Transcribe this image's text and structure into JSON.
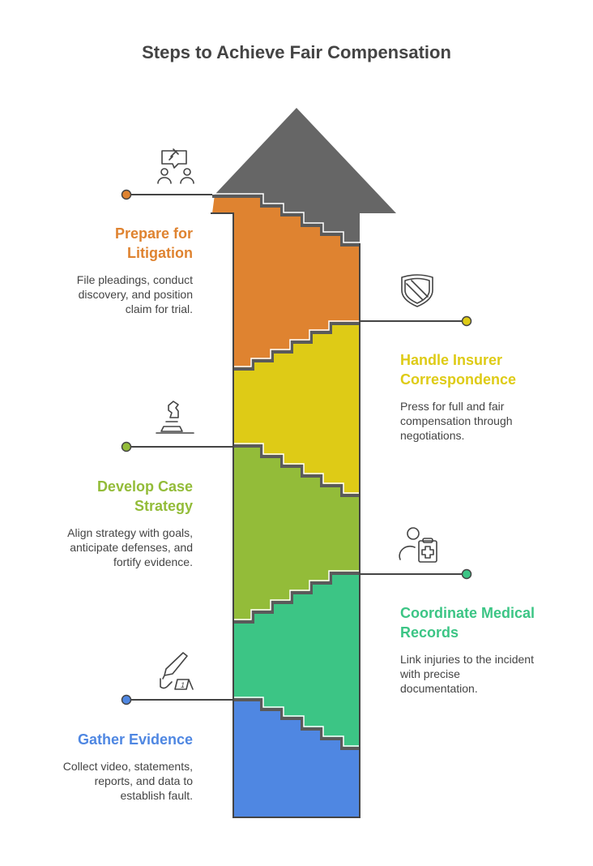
{
  "title": "Steps to Achieve Fair Compensation",
  "colors": {
    "arrow_head": "#666666",
    "orange": "#DF8330",
    "yellow": "#DECB16",
    "green": "#93BC39",
    "teal": "#3CC585",
    "blue": "#4F87E2",
    "text": "#444444"
  },
  "steps": [
    {
      "title_lines": [
        "Prepare for",
        "Litigation"
      ],
      "desc_lines": [
        "File pleadings, conduct",
        "discovery, and position",
        "claim for trial."
      ],
      "icon": "gavel-speech-people-icon",
      "color": "#DF8330"
    },
    {
      "title_lines": [
        "Handle Insurer",
        "Correspondence"
      ],
      "desc_lines": [
        "Press for full and fair",
        "compensation through",
        "negotiations."
      ],
      "icon": "shield-icon",
      "color": "#DECB16"
    },
    {
      "title_lines": [
        "Develop Case",
        "Strategy"
      ],
      "desc_lines": [
        "Align strategy with goals,",
        "anticipate defenses, and",
        "fortify evidence."
      ],
      "icon": "chess-knight-icon",
      "color": "#93BC39"
    },
    {
      "title_lines": [
        "Coordinate Medical",
        "Records"
      ],
      "desc_lines": [
        "Link injuries to the incident",
        "with precise",
        "documentation."
      ],
      "icon": "person-medical-clipboard-icon",
      "color": "#3CC585"
    },
    {
      "title_lines": [
        "Gather Evidence"
      ],
      "desc_lines": [
        "Collect video, statements,",
        "reports, and data to",
        "establish fault."
      ],
      "icon": "knife-evidence-marker-icon",
      "color": "#4F87E2"
    }
  ],
  "evidence_marker_number": "1"
}
